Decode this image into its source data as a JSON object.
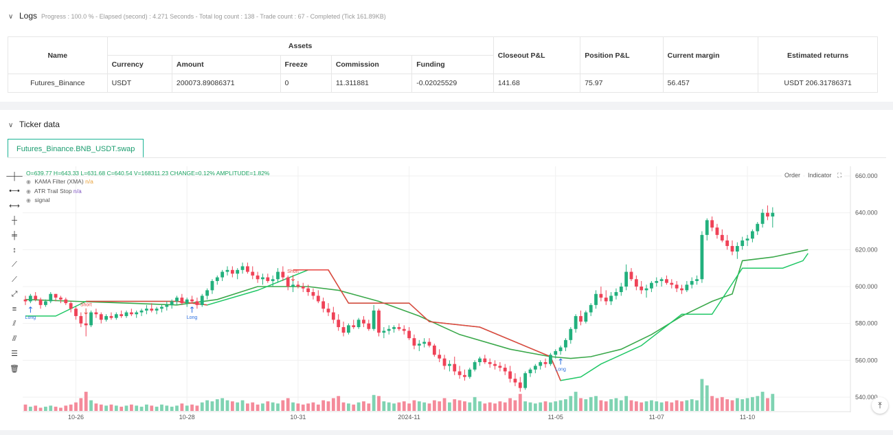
{
  "logs": {
    "title": "Logs",
    "summary": "Progress : 100.0 % - Elapsed (second) : 4.271 Seconds - Total log count : 138 - Trade count : 67 - Completed (Tick 161.89KB)"
  },
  "table": {
    "name_header": "Name",
    "assets_header": "Assets",
    "sub_headers": [
      "Currency",
      "Amount",
      "Freeze",
      "Commission",
      "Funding"
    ],
    "closeout_header": "Closeout P&L",
    "position_header": "Position P&L",
    "margin_header": "Current margin",
    "returns_header": "Estimated returns",
    "row": {
      "name": "Futures_Binance",
      "currency": "USDT",
      "amount": "200073.89086371",
      "freeze": "0",
      "commission": "11.311881",
      "funding": "-0.02025529",
      "closeout": "141.68",
      "position": "75.97",
      "margin": "56.457",
      "returns": "USDT 206.31786371"
    }
  },
  "ticker": {
    "title": "Ticker data",
    "tab_label": "Futures_Binance.BNB_USDT.swap",
    "order_label": "Order",
    "indicator_label": "Indicator",
    "legend": {
      "ohlc": "O=639.77 H=643.33 L=631.68 C=640.54 V=168311.23 CHANGE=0.12% AMPLITUDE=1.82%",
      "kama": "KAMA Filter (XMA)",
      "kama_val": "n/a",
      "atr": "ATR Trail Stop",
      "atr_val": "n/a",
      "signal": "signal"
    },
    "tools": [
      "horizontal-line-icon",
      "horizontal-ray-icon",
      "horizontal-segment-icon",
      "vertical-line-icon",
      "vertical-ray-icon",
      "vertical-segment-icon",
      "trend-line-icon",
      "ray-icon",
      "segment-icon",
      "price-channel-icon",
      "parallel-channel-icon",
      "fork-icon",
      "fibonacci-icon",
      "delete-icon"
    ]
  },
  "chart_data": {
    "type": "candlestick",
    "y_ticks": [
      "660.000",
      "640.000",
      "620.000",
      "600.000",
      "580.000",
      "560.000",
      "540.000"
    ],
    "ylim": [
      536,
      664
    ],
    "x_ticks": [
      {
        "label": "10-26",
        "i": 10
      },
      {
        "label": "10-28",
        "i": 32
      },
      {
        "label": "10-31",
        "i": 54
      },
      {
        "label": "2024-11",
        "i": 76
      },
      {
        "label": "11-05",
        "i": 105
      },
      {
        "label": "11-07",
        "i": 125
      },
      {
        "label": "11-10",
        "i": 143
      }
    ],
    "candles": [
      [
        593,
        595,
        590,
        592
      ],
      [
        592,
        596,
        591,
        595
      ],
      [
        595,
        597,
        592,
        593
      ],
      [
        593,
        594,
        588,
        590
      ],
      [
        590,
        593,
        589,
        592
      ],
      [
        592,
        597,
        591,
        596
      ],
      [
        596,
        596,
        592,
        594
      ],
      [
        594,
        595,
        591,
        593
      ],
      [
        593,
        594,
        590,
        591
      ],
      [
        591,
        592,
        586,
        588
      ],
      [
        588,
        589,
        582,
        584
      ],
      [
        584,
        586,
        578,
        580
      ],
      [
        580,
        585,
        573,
        579
      ],
      [
        579,
        587,
        578,
        586
      ],
      [
        586,
        588,
        583,
        585
      ],
      [
        585,
        586,
        580,
        582
      ],
      [
        582,
        585,
        581,
        584
      ],
      [
        584,
        586,
        582,
        583
      ],
      [
        583,
        586,
        582,
        585
      ],
      [
        585,
        587,
        583,
        584
      ],
      [
        584,
        587,
        583,
        586
      ],
      [
        586,
        588,
        584,
        585
      ],
      [
        585,
        587,
        583,
        586
      ],
      [
        586,
        588,
        584,
        587
      ],
      [
        587,
        590,
        585,
        588
      ],
      [
        588,
        591,
        586,
        587
      ],
      [
        587,
        589,
        585,
        588
      ],
      [
        588,
        590,
        586,
        589
      ],
      [
        589,
        592,
        587,
        590
      ],
      [
        590,
        593,
        588,
        592
      ],
      [
        592,
        595,
        590,
        594
      ],
      [
        594,
        596,
        590,
        591
      ],
      [
        591,
        594,
        589,
        593
      ],
      [
        593,
        595,
        591,
        592
      ],
      [
        592,
        594,
        588,
        590
      ],
      [
        590,
        596,
        589,
        595
      ],
      [
        595,
        599,
        593,
        598
      ],
      [
        598,
        604,
        596,
        603
      ],
      [
        603,
        606,
        601,
        605
      ],
      [
        605,
        609,
        603,
        608
      ],
      [
        608,
        611,
        606,
        609
      ],
      [
        609,
        611,
        605,
        607
      ],
      [
        607,
        610,
        604,
        609
      ],
      [
        609,
        613,
        607,
        611
      ],
      [
        611,
        613,
        607,
        608
      ],
      [
        608,
        611,
        604,
        606
      ],
      [
        606,
        608,
        602,
        604
      ],
      [
        604,
        607,
        601,
        605
      ],
      [
        605,
        607,
        602,
        603
      ],
      [
        603,
        606,
        600,
        604
      ],
      [
        604,
        610,
        602,
        608
      ],
      [
        608,
        611,
        603,
        605
      ],
      [
        605,
        606,
        598,
        600
      ],
      [
        600,
        603,
        597,
        601
      ],
      [
        601,
        603,
        599,
        600
      ],
      [
        600,
        602,
        597,
        599
      ],
      [
        599,
        601,
        595,
        597
      ],
      [
        597,
        599,
        593,
        595
      ],
      [
        595,
        598,
        591,
        592
      ],
      [
        592,
        594,
        586,
        588
      ],
      [
        588,
        591,
        584,
        586
      ],
      [
        586,
        589,
        580,
        582
      ],
      [
        582,
        585,
        576,
        578
      ],
      [
        578,
        581,
        573,
        575
      ],
      [
        575,
        580,
        574,
        579
      ],
      [
        579,
        582,
        577,
        578
      ],
      [
        578,
        583,
        577,
        582
      ],
      [
        582,
        584,
        578,
        580
      ],
      [
        580,
        582,
        576,
        577
      ],
      [
        577,
        590,
        576,
        587
      ],
      [
        587,
        588,
        573,
        575
      ],
      [
        575,
        578,
        572,
        576
      ],
      [
        576,
        579,
        574,
        577
      ],
      [
        577,
        579,
        575,
        578
      ],
      [
        578,
        580,
        576,
        577
      ],
      [
        577,
        579,
        574,
        576
      ],
      [
        576,
        578,
        571,
        572
      ],
      [
        572,
        574,
        566,
        568
      ],
      [
        568,
        571,
        565,
        569
      ],
      [
        569,
        572,
        567,
        570
      ],
      [
        570,
        572,
        567,
        568
      ],
      [
        568,
        569,
        562,
        563
      ],
      [
        563,
        566,
        559,
        561
      ],
      [
        561,
        563,
        555,
        557
      ],
      [
        557,
        560,
        554,
        558
      ],
      [
        558,
        562,
        552,
        554
      ],
      [
        554,
        557,
        550,
        552
      ],
      [
        552,
        555,
        549,
        551
      ],
      [
        551,
        556,
        550,
        555
      ],
      [
        555,
        560,
        554,
        559
      ],
      [
        559,
        562,
        557,
        561
      ],
      [
        561,
        563,
        558,
        559
      ],
      [
        559,
        561,
        556,
        558
      ],
      [
        558,
        560,
        555,
        557
      ],
      [
        557,
        559,
        554,
        556
      ],
      [
        556,
        558,
        552,
        554
      ],
      [
        554,
        557,
        548,
        550
      ],
      [
        550,
        553,
        546,
        548
      ],
      [
        548,
        551,
        543,
        545
      ],
      [
        545,
        554,
        544,
        553
      ],
      [
        553,
        556,
        551,
        555
      ],
      [
        555,
        558,
        553,
        557
      ],
      [
        557,
        560,
        555,
        559
      ],
      [
        559,
        561,
        556,
        558
      ],
      [
        558,
        564,
        557,
        563
      ],
      [
        563,
        566,
        561,
        565
      ],
      [
        565,
        568,
        563,
        567
      ],
      [
        567,
        572,
        565,
        571
      ],
      [
        571,
        578,
        569,
        577
      ],
      [
        577,
        585,
        575,
        584
      ],
      [
        584,
        587,
        579,
        581
      ],
      [
        581,
        587,
        580,
        586
      ],
      [
        586,
        591,
        584,
        590
      ],
      [
        590,
        598,
        588,
        596
      ],
      [
        596,
        600,
        592,
        594
      ],
      [
        594,
        598,
        590,
        592
      ],
      [
        592,
        597,
        590,
        595
      ],
      [
        595,
        599,
        593,
        597
      ],
      [
        597,
        602,
        595,
        600
      ],
      [
        600,
        612,
        598,
        608
      ],
      [
        608,
        610,
        603,
        604
      ],
      [
        604,
        606,
        598,
        600
      ],
      [
        600,
        603,
        596,
        598
      ],
      [
        598,
        601,
        594,
        599
      ],
      [
        599,
        603,
        597,
        602
      ],
      [
        602,
        605,
        600,
        603
      ],
      [
        603,
        605,
        600,
        604
      ],
      [
        604,
        606,
        601,
        602
      ],
      [
        602,
        604,
        599,
        601
      ],
      [
        601,
        603,
        597,
        599
      ],
      [
        599,
        601,
        596,
        598
      ],
      [
        598,
        603,
        597,
        601
      ],
      [
        601,
        605,
        599,
        603
      ],
      [
        603,
        606,
        601,
        604
      ],
      [
        604,
        630,
        602,
        628
      ],
      [
        628,
        637,
        625,
        636
      ],
      [
        636,
        638,
        630,
        632
      ],
      [
        632,
        634,
        626,
        628
      ],
      [
        628,
        631,
        624,
        625
      ],
      [
        625,
        628,
        620,
        622
      ],
      [
        622,
        625,
        617,
        619
      ],
      [
        619,
        624,
        615,
        622
      ],
      [
        622,
        627,
        620,
        625
      ],
      [
        625,
        628,
        622,
        626
      ],
      [
        626,
        631,
        624,
        630
      ],
      [
        630,
        635,
        628,
        634
      ],
      [
        634,
        642,
        632,
        640
      ],
      [
        640,
        644,
        636,
        638
      ],
      [
        638,
        643,
        632,
        640
      ]
    ],
    "kama": [
      [
        0,
        593
      ],
      [
        10,
        592
      ],
      [
        20,
        591
      ],
      [
        30,
        590
      ],
      [
        38,
        593
      ],
      [
        46,
        600
      ],
      [
        56,
        600
      ],
      [
        62,
        598
      ],
      [
        70,
        592
      ],
      [
        78,
        584
      ],
      [
        86,
        574
      ],
      [
        96,
        566
      ],
      [
        104,
        562
      ],
      [
        108,
        561
      ],
      [
        112,
        562
      ],
      [
        118,
        566
      ],
      [
        124,
        574
      ],
      [
        130,
        584
      ],
      [
        136,
        592
      ],
      [
        140,
        596
      ],
      [
        142,
        614
      ],
      [
        148,
        616
      ],
      [
        155,
        620
      ]
    ],
    "atr": [
      [
        0,
        584
      ],
      [
        6,
        584
      ],
      [
        12,
        592
      ],
      [
        30,
        592
      ],
      [
        36,
        590
      ],
      [
        46,
        598
      ],
      [
        56,
        609
      ],
      [
        60,
        609
      ],
      [
        62,
        600
      ],
      [
        64,
        591
      ],
      [
        76,
        591
      ],
      [
        80,
        581
      ],
      [
        90,
        578
      ],
      [
        104,
        562
      ],
      [
        106,
        549
      ],
      [
        110,
        551
      ],
      [
        114,
        558
      ],
      [
        122,
        568
      ],
      [
        130,
        585
      ],
      [
        136,
        585
      ],
      [
        142,
        610
      ],
      [
        150,
        610
      ],
      [
        154,
        614
      ],
      [
        155,
        618
      ]
    ],
    "signals": [
      {
        "i": 1,
        "label": "Long",
        "dir": "up"
      },
      {
        "i": 12,
        "label": "Short",
        "dir": "down"
      },
      {
        "i": 33,
        "label": "Long",
        "dir": "up"
      },
      {
        "i": 53,
        "label": "Short",
        "dir": "down"
      },
      {
        "i": 106,
        "label": "Long",
        "dir": "up"
      }
    ],
    "volumes": [
      6,
      4,
      5,
      3,
      4,
      5,
      4,
      3,
      5,
      6,
      8,
      12,
      18,
      10,
      7,
      6,
      5,
      6,
      5,
      4,
      5,
      6,
      5,
      4,
      6,
      5,
      4,
      6,
      5,
      4,
      5,
      7,
      5,
      6,
      5,
      8,
      10,
      9,
      11,
      12,
      10,
      9,
      8,
      10,
      7,
      8,
      6,
      7,
      9,
      8,
      7,
      10,
      12,
      8,
      7,
      6,
      7,
      8,
      6,
      10,
      9,
      12,
      14,
      8,
      7,
      6,
      8,
      9,
      7,
      15,
      14,
      9,
      8,
      7,
      8,
      9,
      7,
      10,
      9,
      8,
      7,
      10,
      9,
      12,
      8,
      11,
      10,
      9,
      8,
      13,
      9,
      7,
      8,
      7,
      9,
      8,
      12,
      10,
      16,
      9,
      8,
      7,
      8,
      9,
      8,
      9,
      10,
      11,
      14,
      18,
      12,
      11,
      13,
      14,
      10,
      9,
      11,
      12,
      10,
      14,
      10,
      9,
      8,
      9,
      10,
      9,
      8,
      9,
      8,
      10,
      9,
      10,
      11,
      10,
      30,
      24,
      14,
      12,
      13,
      11,
      10,
      12,
      11,
      12,
      13,
      14,
      18,
      12,
      16
    ],
    "vol_colors_up": true
  }
}
